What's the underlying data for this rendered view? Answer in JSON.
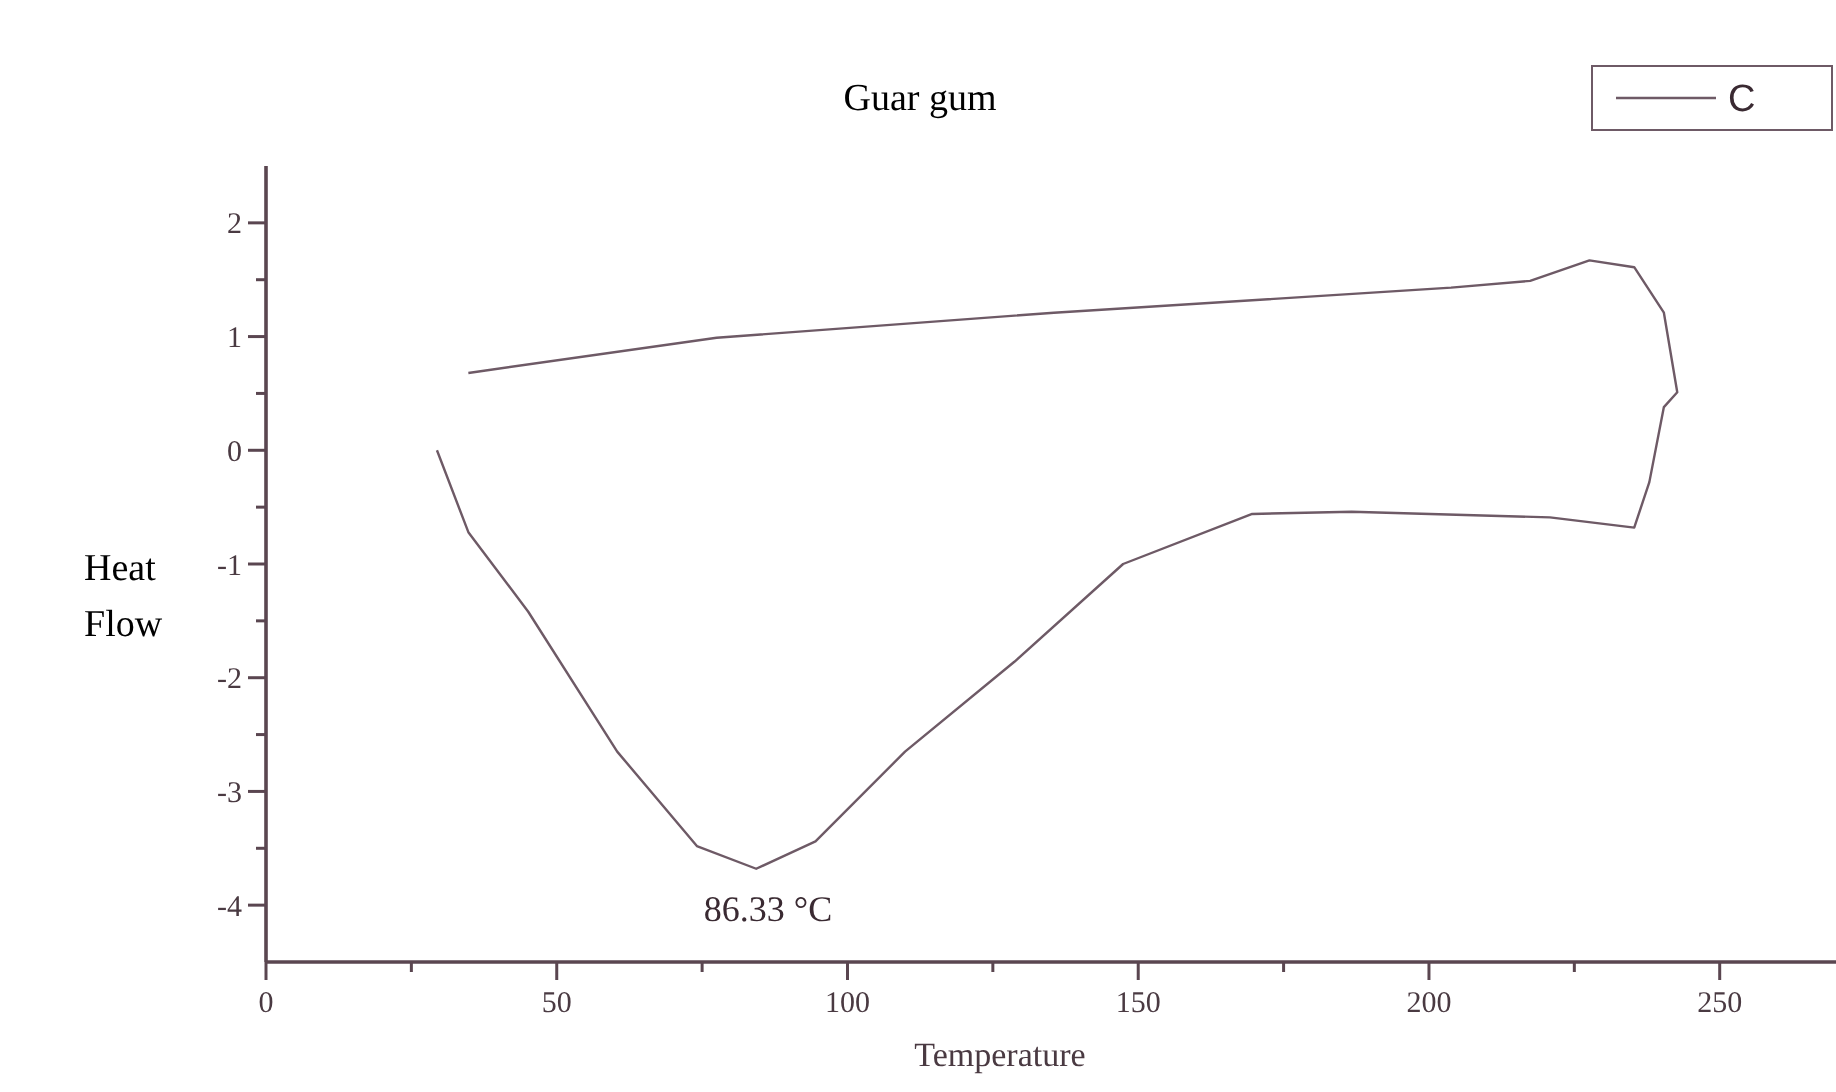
{
  "chart_data": {
    "type": "line",
    "title": "Guar gum",
    "xlabel": "Temperature",
    "ylabel": "Heat Flow",
    "xlim": [
      0,
      270
    ],
    "xticks": [
      0,
      {
        "value": 25,
        "label": null
      },
      50,
      {
        "value": 75,
        "label": null
      },
      100,
      {
        "value": 125,
        "label": null
      },
      150,
      {
        "value": 175,
        "label": null
      },
      200,
      {
        "value": 225,
        "label": null
      },
      250
    ],
    "ylim": [
      -4.5,
      2.5
    ],
    "yticks": [
      -4,
      {
        "value": -3.5,
        "label": null
      },
      -3,
      {
        "value": -2.5,
        "label": null
      },
      -2,
      {
        "value": -1.5,
        "label": null
      },
      -1,
      {
        "value": -0.5,
        "label": null
      },
      0,
      {
        "value": 0.5,
        "label": null
      },
      1,
      {
        "value": 1.5,
        "label": null
      },
      2
    ],
    "grid": false,
    "legend": "top right",
    "marker": "none",
    "line_style": "solid",
    "series": [
      {
        "name": "C",
        "color": "#6e5a66",
        "x": [
          29.4,
          34.8,
          45.1,
          60.4,
          74.1,
          84.3,
          94.5,
          109.9,
          128.7,
          147.4,
          169.6,
          186.7,
          220.8,
          235.3,
          237.9,
          240.4,
          242.7,
          240.4,
          235.3,
          227.6,
          217.4,
          203.8,
          135.5,
          77.5,
          34.8
        ],
        "values": [
          0,
          -0.72,
          -1.42,
          -2.65,
          -3.48,
          -3.68,
          -3.44,
          -2.65,
          -1.86,
          -1.0,
          -0.56,
          -0.54,
          -0.59,
          -0.68,
          -0.28,
          0.38,
          0.51,
          1.21,
          1.61,
          1.67,
          1.49,
          1.43,
          1.21,
          0.99,
          0.68
        ]
      }
    ],
    "annotations": [
      {
        "text": "86.33 °C",
        "x": 86.33,
        "y": -3.68
      }
    ]
  }
}
